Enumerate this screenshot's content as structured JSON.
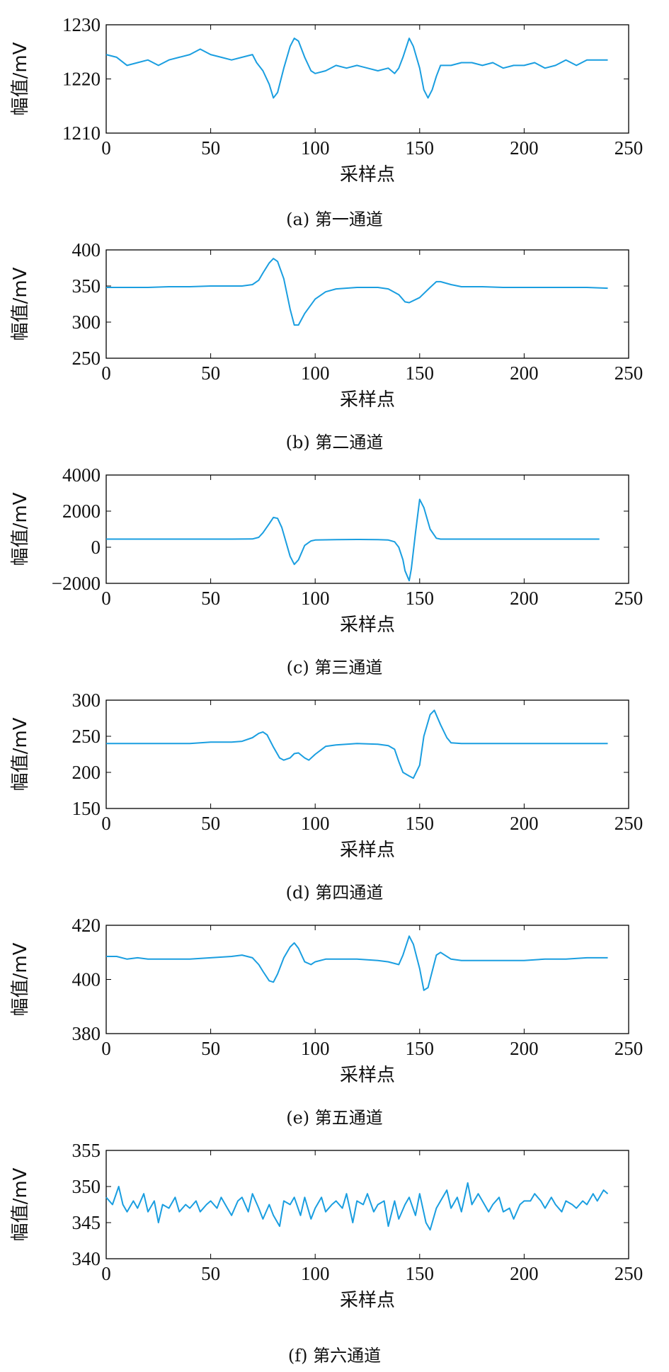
{
  "figure": {
    "line_color": "#1a9ee0",
    "panels": [
      {
        "id": "a",
        "caption": "(a) 第一通道"
      },
      {
        "id": "b",
        "caption": "(b) 第二通道"
      },
      {
        "id": "c",
        "caption": "(c) 第三通道"
      },
      {
        "id": "d",
        "caption": "(d) 第四通道"
      },
      {
        "id": "e",
        "caption": "(e) 第五通道"
      },
      {
        "id": "f",
        "caption": "(f) 第六通道"
      }
    ]
  },
  "chart_data": [
    {
      "type": "line",
      "xlabel": "采样点",
      "ylabel": "幅值/mV",
      "xlim": [
        0,
        250
      ],
      "ylim": [
        1210,
        1230
      ],
      "xticks": [
        0,
        50,
        100,
        150,
        200,
        250
      ],
      "yticks": [
        1210,
        1220,
        1230
      ],
      "series": [
        {
          "x": [
            0,
            5,
            10,
            15,
            20,
            25,
            30,
            35,
            40,
            45,
            50,
            55,
            60,
            65,
            70,
            72,
            75,
            78,
            80,
            82,
            85,
            88,
            90,
            92,
            95,
            98,
            100,
            105,
            110,
            115,
            120,
            125,
            130,
            135,
            138,
            140,
            142,
            145,
            147,
            150,
            152,
            154,
            156,
            158,
            160,
            165,
            170,
            175,
            180,
            185,
            190,
            195,
            200,
            205,
            210,
            215,
            220,
            225,
            230,
            235,
            240
          ],
          "y": [
            1224.5,
            1224,
            1222.5,
            1223,
            1223.5,
            1222.5,
            1223.5,
            1224,
            1224.5,
            1225.5,
            1224.5,
            1224,
            1223.5,
            1224,
            1224.5,
            1223,
            1221.5,
            1219,
            1216.5,
            1217.5,
            1222,
            1226,
            1227.5,
            1227,
            1224,
            1221.5,
            1221,
            1221.5,
            1222.5,
            1222,
            1222.5,
            1222,
            1221.5,
            1222,
            1221,
            1222,
            1224,
            1227.5,
            1226,
            1222,
            1218,
            1216.5,
            1218,
            1220.5,
            1222.5,
            1222.5,
            1223,
            1223,
            1222.5,
            1223,
            1222,
            1222.5,
            1222.5,
            1223,
            1222,
            1222.5,
            1223.5,
            1222.5,
            1223.5,
            1223.5,
            1223.5
          ]
        }
      ]
    },
    {
      "type": "line",
      "xlabel": "采样点",
      "ylabel": "幅值/mV",
      "xlim": [
        0,
        250
      ],
      "ylim": [
        250,
        400
      ],
      "xticks": [
        0,
        50,
        100,
        150,
        200,
        250
      ],
      "yticks": [
        250,
        300,
        350,
        400
      ],
      "series": [
        {
          "x": [
            0,
            10,
            20,
            30,
            40,
            50,
            60,
            65,
            70,
            73,
            75,
            78,
            80,
            82,
            85,
            88,
            90,
            92,
            95,
            100,
            105,
            110,
            120,
            130,
            135,
            140,
            143,
            145,
            150,
            155,
            158,
            160,
            165,
            170,
            180,
            190,
            200,
            210,
            220,
            230,
            240
          ],
          "y": [
            348,
            348,
            348,
            349,
            349,
            350,
            350,
            350,
            352,
            358,
            368,
            382,
            388,
            384,
            360,
            318,
            296,
            296,
            312,
            332,
            342,
            346,
            348,
            348,
            346,
            338,
            328,
            327,
            334,
            348,
            356,
            356,
            352,
            349,
            349,
            348,
            348,
            348,
            348,
            348,
            347
          ]
        }
      ]
    },
    {
      "type": "line",
      "xlabel": "采样点",
      "ylabel": "幅值/mV",
      "xlim": [
        0,
        250
      ],
      "ylim": [
        -2000,
        4000
      ],
      "xticks": [
        0,
        50,
        100,
        150,
        200,
        250
      ],
      "yticks": [
        -2000,
        0,
        2000,
        4000
      ],
      "series": [
        {
          "x": [
            0,
            20,
            40,
            60,
            70,
            73,
            75,
            78,
            80,
            82,
            84,
            86,
            88,
            90,
            92,
            95,
            98,
            100,
            110,
            120,
            130,
            135,
            138,
            140,
            142,
            143,
            145,
            146,
            148,
            150,
            152,
            155,
            158,
            160,
            170,
            180,
            200,
            220,
            236
          ],
          "y": [
            450,
            450,
            450,
            450,
            460,
            550,
            800,
            1300,
            1650,
            1600,
            1100,
            300,
            -500,
            -950,
            -700,
            100,
            350,
            400,
            420,
            430,
            420,
            400,
            300,
            0,
            -700,
            -1300,
            -1850,
            -1200,
            800,
            2650,
            2200,
            1000,
            500,
            450,
            450,
            450,
            450,
            450,
            450
          ]
        }
      ]
    },
    {
      "type": "line",
      "xlabel": "采样点",
      "ylabel": "幅值/mV",
      "xlim": [
        0,
        250
      ],
      "ylim": [
        150,
        300
      ],
      "xticks": [
        0,
        50,
        100,
        150,
        200,
        250
      ],
      "yticks": [
        150,
        200,
        250,
        300
      ],
      "series": [
        {
          "x": [
            0,
            10,
            20,
            30,
            40,
            50,
            60,
            65,
            70,
            73,
            75,
            77,
            80,
            83,
            85,
            88,
            90,
            92,
            95,
            97,
            100,
            105,
            110,
            115,
            120,
            130,
            135,
            138,
            140,
            142,
            145,
            147,
            150,
            152,
            155,
            157,
            160,
            163,
            165,
            170,
            180,
            190,
            200,
            210,
            220,
            230,
            240
          ],
          "y": [
            240,
            240,
            240,
            240,
            240,
            242,
            242,
            243,
            248,
            254,
            256,
            252,
            235,
            220,
            217,
            220,
            226,
            227,
            220,
            217,
            225,
            236,
            238,
            239,
            240,
            239,
            237,
            232,
            215,
            200,
            195,
            192,
            210,
            250,
            280,
            286,
            266,
            248,
            241,
            240,
            240,
            240,
            240,
            240,
            240,
            240,
            240
          ]
        }
      ]
    },
    {
      "type": "line",
      "xlabel": "采样点",
      "ylabel": "幅值/mV",
      "xlim": [
        0,
        250
      ],
      "ylim": [
        380,
        420
      ],
      "xticks": [
        0,
        50,
        100,
        150,
        200,
        250
      ],
      "yticks": [
        380,
        400,
        420
      ],
      "series": [
        {
          "x": [
            0,
            5,
            10,
            15,
            20,
            30,
            40,
            50,
            60,
            65,
            70,
            73,
            75,
            78,
            80,
            82,
            85,
            88,
            90,
            92,
            95,
            98,
            100,
            105,
            110,
            120,
            130,
            135,
            140,
            142,
            145,
            147,
            150,
            152,
            154,
            156,
            158,
            160,
            165,
            170,
            180,
            190,
            200,
            210,
            220,
            230,
            240
          ],
          "y": [
            408.5,
            408.5,
            407.5,
            408,
            407.5,
            407.5,
            407.5,
            408,
            408.5,
            409,
            408,
            405.5,
            403,
            399.5,
            399,
            402,
            408,
            412,
            413.5,
            411.5,
            406.5,
            405.5,
            406.5,
            407.5,
            407.5,
            407.5,
            407,
            406.5,
            405.5,
            409,
            416,
            413,
            404,
            396,
            397,
            403,
            409,
            410,
            407.5,
            407,
            407,
            407,
            407,
            407.5,
            407.5,
            408,
            408
          ]
        }
      ]
    },
    {
      "type": "line",
      "xlabel": "采样点",
      "ylabel": "幅值/mV",
      "xlim": [
        0,
        250
      ],
      "ylim": [
        340,
        355
      ],
      "xticks": [
        0,
        50,
        100,
        150,
        200,
        250
      ],
      "yticks": [
        340,
        345,
        350,
        355
      ],
      "series": [
        {
          "x": [
            0,
            3,
            6,
            8,
            10,
            13,
            15,
            18,
            20,
            23,
            25,
            27,
            30,
            33,
            35,
            38,
            40,
            43,
            45,
            48,
            50,
            53,
            55,
            58,
            60,
            63,
            65,
            68,
            70,
            73,
            75,
            78,
            80,
            83,
            85,
            88,
            90,
            93,
            95,
            98,
            100,
            103,
            105,
            108,
            110,
            113,
            115,
            118,
            120,
            123,
            125,
            128,
            130,
            133,
            135,
            138,
            140,
            143,
            145,
            148,
            150,
            153,
            155,
            158,
            160,
            163,
            165,
            168,
            170,
            173,
            175,
            178,
            180,
            183,
            185,
            188,
            190,
            193,
            195,
            198,
            200,
            203,
            205,
            208,
            210,
            213,
            215,
            218,
            220,
            223,
            225,
            228,
            230,
            233,
            235,
            238,
            240
          ],
          "y": [
            348.5,
            347.5,
            350,
            347.5,
            346.5,
            348,
            347,
            349,
            346.5,
            348,
            345,
            347.5,
            347,
            348.5,
            346.5,
            347.5,
            347,
            348,
            346.5,
            347.5,
            348,
            347,
            348.5,
            347,
            346,
            348,
            348.5,
            346.5,
            349,
            347,
            345.5,
            347.5,
            346,
            344.5,
            348,
            347.5,
            348.5,
            346,
            348.5,
            345.5,
            347,
            348.5,
            346.5,
            347.5,
            348,
            347,
            349,
            345,
            348,
            347.5,
            349,
            346.5,
            347.5,
            348,
            344.5,
            348,
            345.5,
            347.5,
            348.5,
            346,
            349,
            345,
            344,
            347,
            348,
            349.5,
            347,
            348.5,
            346.5,
            350.5,
            347.5,
            349,
            348,
            346.5,
            347.5,
            348.5,
            346.5,
            347,
            345.5,
            347.5,
            348,
            348,
            349,
            348,
            347,
            348.5,
            347.5,
            346.5,
            348,
            347.5,
            347,
            348,
            347.5,
            349,
            348,
            349.5,
            349
          ]
        }
      ]
    }
  ]
}
